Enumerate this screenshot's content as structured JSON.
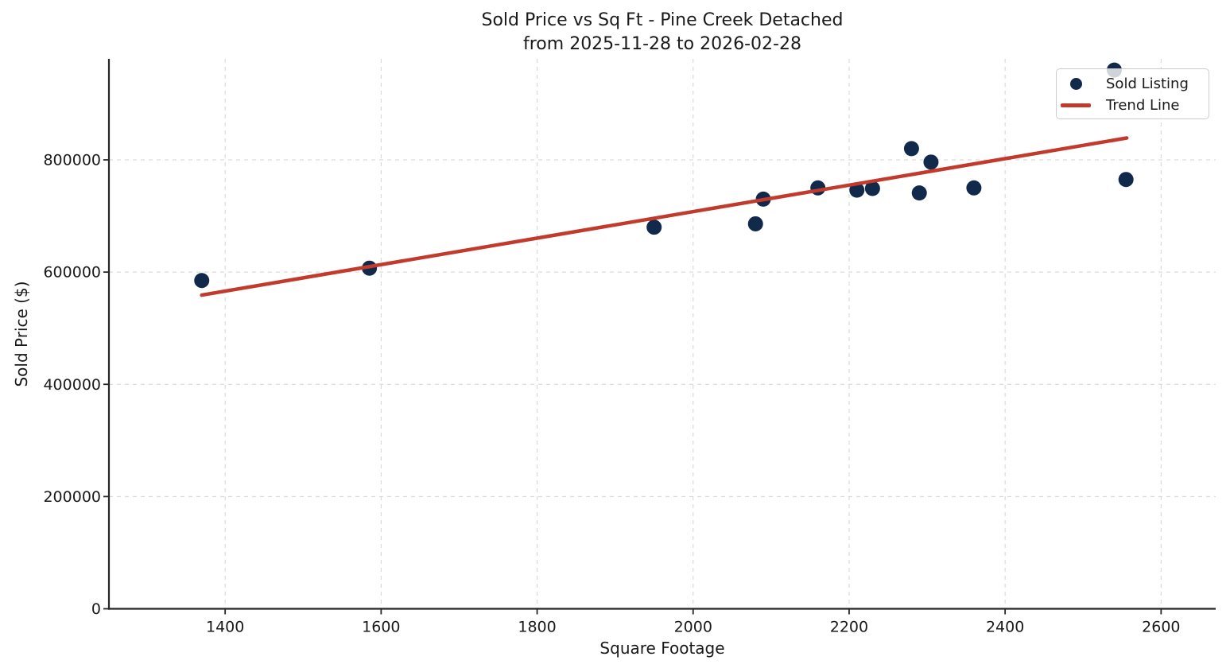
{
  "chart_data": {
    "type": "scatter",
    "title": "Sold Price vs Sq Ft - Pine Creek Detached",
    "subtitle": "from 2025-11-28 to 2026-02-28",
    "xlabel": "Square Footage",
    "ylabel": "Sold Price ($)",
    "xlim": [
      1251,
      2670
    ],
    "ylim": [
      0,
      980000
    ],
    "x_ticks": [
      1400,
      1600,
      1800,
      2000,
      2200,
      2400,
      2600
    ],
    "y_ticks": [
      0,
      200000,
      400000,
      600000,
      800000
    ],
    "grid": true,
    "grid_style": "dashed",
    "colors": {
      "point": "#11294a",
      "trend": "#c13a2c",
      "grid": "#d3d3d3",
      "axis": "#262626",
      "text": "#1a1a1a"
    },
    "legend": {
      "position": "upper right",
      "items": [
        {
          "label": "Sold Listing",
          "marker": "dot",
          "color": "#11294a"
        },
        {
          "label": "Trend Line",
          "marker": "line",
          "color": "#c13a2c"
        }
      ]
    },
    "series": [
      {
        "name": "Sold Listing",
        "type": "scatter",
        "color": "#11294a",
        "points": [
          [
            1370,
            585000
          ],
          [
            1585,
            607000
          ],
          [
            1950,
            680000
          ],
          [
            2080,
            686000
          ],
          [
            2090,
            730000
          ],
          [
            2160,
            750000
          ],
          [
            2210,
            746000
          ],
          [
            2230,
            749000
          ],
          [
            2280,
            820000
          ],
          [
            2290,
            741000
          ],
          [
            2305,
            796000
          ],
          [
            2360,
            750000
          ],
          [
            2540,
            960000
          ],
          [
            2555,
            765000
          ]
        ]
      },
      {
        "name": "Trend Line",
        "type": "line",
        "color": "#c13a2c",
        "points": [
          [
            1370,
            559000
          ],
          [
            2556,
            839000
          ]
        ]
      }
    ]
  }
}
